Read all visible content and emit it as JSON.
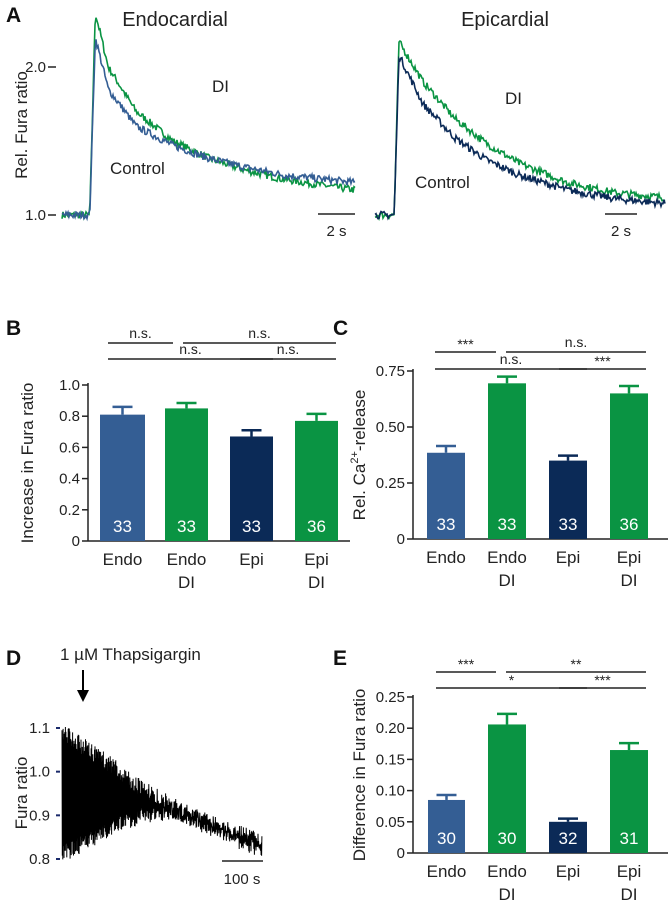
{
  "colors": {
    "endo": "#345e94",
    "endo_di": "#0a9443",
    "epi": "#0b2a57",
    "epi_di": "#0a9443",
    "trace_d": "#000000"
  },
  "chart_data": [
    {
      "panel": "A",
      "type": "line",
      "subpanels": [
        {
          "title": "Endocardial",
          "ylabel": "Rel. Fura ratio",
          "yticks": [
            "1.0",
            "2.0"
          ],
          "scale_bar": "2 s",
          "series": [
            {
              "name": "DI",
              "color": "#0a9443",
              "points": [
                [
                  0,
                  1.0
                ],
                [
                  1.5,
                  1.0
                ],
                [
                  1.8,
                  2.37
                ],
                [
                  2.5,
                  2.0
                ],
                [
                  4,
                  1.7
                ],
                [
                  6,
                  1.5
                ],
                [
                  8,
                  1.38
                ],
                [
                  10,
                  1.3
                ],
                [
                  12,
                  1.24
                ],
                [
                  15.8,
                  1.17
                ]
              ]
            },
            {
              "name": "Control",
              "color": "#345e94",
              "points": [
                [
                  0,
                  1.0
                ],
                [
                  1.5,
                  1.0
                ],
                [
                  1.8,
                  2.2
                ],
                [
                  2.5,
                  1.85
                ],
                [
                  4,
                  1.6
                ],
                [
                  6,
                  1.47
                ],
                [
                  8,
                  1.38
                ],
                [
                  10,
                  1.32
                ],
                [
                  12,
                  1.27
                ],
                [
                  15.8,
                  1.22
                ]
              ]
            }
          ]
        },
        {
          "title": "Epicardial",
          "scale_bar": "2 s",
          "series": [
            {
              "name": "DI",
              "color": "#0a9443",
              "points": [
                [
                  0,
                  1.0
                ],
                [
                  1.2,
                  1.0
                ],
                [
                  1.5,
                  2.17
                ],
                [
                  3,
                  1.9
                ],
                [
                  5,
                  1.65
                ],
                [
                  7,
                  1.48
                ],
                [
                  9,
                  1.35
                ],
                [
                  12,
                  1.22
                ],
                [
                  15,
                  1.15
                ],
                [
                  18,
                  1.12
                ]
              ]
            },
            {
              "name": "Control",
              "color": "#0b2a57",
              "points": [
                [
                  0,
                  1.0
                ],
                [
                  1.2,
                  1.0
                ],
                [
                  1.5,
                  2.08
                ],
                [
                  3,
                  1.75
                ],
                [
                  5,
                  1.52
                ],
                [
                  7,
                  1.37
                ],
                [
                  9,
                  1.27
                ],
                [
                  12,
                  1.17
                ],
                [
                  15,
                  1.11
                ],
                [
                  18,
                  1.08
                ]
              ]
            }
          ]
        }
      ]
    },
    {
      "panel": "B",
      "type": "bar",
      "ylabel": "Increase in Fura ratio",
      "ylim": [
        0,
        1.0
      ],
      "yticks": [
        "0",
        "0.2",
        "0.4",
        "0.6",
        "0.8",
        "1.0"
      ],
      "categories": [
        [
          "Endo",
          ""
        ],
        [
          "Endo",
          "DI"
        ],
        [
          "Epi",
          ""
        ],
        [
          "Epi",
          "DI"
        ]
      ],
      "values": [
        0.81,
        0.85,
        0.67,
        0.77
      ],
      "errors": [
        0.05,
        0.035,
        0.04,
        0.045
      ],
      "n": [
        "33",
        "33",
        "33",
        "36"
      ],
      "significance": [
        {
          "from": 0,
          "to": 1,
          "label": "n.s.",
          "row": 0
        },
        {
          "from": 1,
          "to": 3,
          "label": "n.s.",
          "row": 0
        },
        {
          "from": 0,
          "to": 2,
          "label": "n.s.",
          "row": 1
        },
        {
          "from": 2,
          "to": 3,
          "label": "n.s.",
          "row": 1
        }
      ]
    },
    {
      "panel": "C",
      "type": "bar",
      "ylabel": "Rel. Ca",
      "ylabel_sup": "2+",
      "ylabel_rest": "-release",
      "ylim": [
        0,
        0.75
      ],
      "yticks": [
        "0",
        "0.25",
        "0.50",
        "0.75"
      ],
      "categories": [
        [
          "Endo",
          ""
        ],
        [
          "Endo",
          "DI"
        ],
        [
          "Epi",
          ""
        ],
        [
          "Epi",
          "DI"
        ]
      ],
      "values": [
        0.385,
        0.695,
        0.35,
        0.65
      ],
      "errors": [
        0.03,
        0.03,
        0.022,
        0.033
      ],
      "n": [
        "33",
        "33",
        "33",
        "36"
      ],
      "significance": [
        {
          "from": 0,
          "to": 1,
          "label": "***",
          "row": 0
        },
        {
          "from": 1,
          "to": 3,
          "label": "n.s.",
          "row": 0
        },
        {
          "from": 0,
          "to": 2,
          "label": "n.s.",
          "row": 1
        },
        {
          "from": 2,
          "to": 3,
          "label": "***",
          "row": 1
        }
      ]
    },
    {
      "panel": "D",
      "type": "line",
      "ylabel": "Fura ratio",
      "yticks": [
        "0.8",
        "0.9",
        "1.0",
        "1.1"
      ],
      "annotation": "1 µM Thapsigargin",
      "scale_bar": "100 s",
      "upper_envelope": [
        [
          0,
          1.11
        ],
        [
          100,
          1.05
        ],
        [
          200,
          0.98
        ],
        [
          300,
          0.93
        ],
        [
          400,
          0.89
        ],
        [
          500,
          0.86
        ]
      ],
      "lower_envelope": [
        [
          0,
          0.79
        ],
        [
          100,
          0.84
        ],
        [
          200,
          0.88
        ],
        [
          280,
          0.89
        ],
        [
          400,
          0.84
        ],
        [
          500,
          0.8
        ]
      ]
    },
    {
      "panel": "E",
      "type": "bar",
      "ylabel": "Difference in Fura ratio",
      "ylim": [
        0,
        0.25
      ],
      "yticks": [
        "0",
        "0.05",
        "0.10",
        "0.15",
        "0.20",
        "0.25"
      ],
      "categories": [
        [
          "Endo",
          ""
        ],
        [
          "Endo",
          "DI"
        ],
        [
          "Epi",
          ""
        ],
        [
          "Epi",
          "DI"
        ]
      ],
      "values": [
        0.085,
        0.206,
        0.05,
        0.165
      ],
      "errors": [
        0.008,
        0.017,
        0.005,
        0.011
      ],
      "n": [
        "30",
        "30",
        "32",
        "31"
      ],
      "significance": [
        {
          "from": 0,
          "to": 1,
          "label": "***",
          "row": 0
        },
        {
          "from": 1,
          "to": 3,
          "label": "**",
          "row": 0
        },
        {
          "from": 0,
          "to": 2,
          "label": "*",
          "row": 1
        },
        {
          "from": 2,
          "to": 3,
          "label": "***",
          "row": 1
        }
      ]
    }
  ]
}
